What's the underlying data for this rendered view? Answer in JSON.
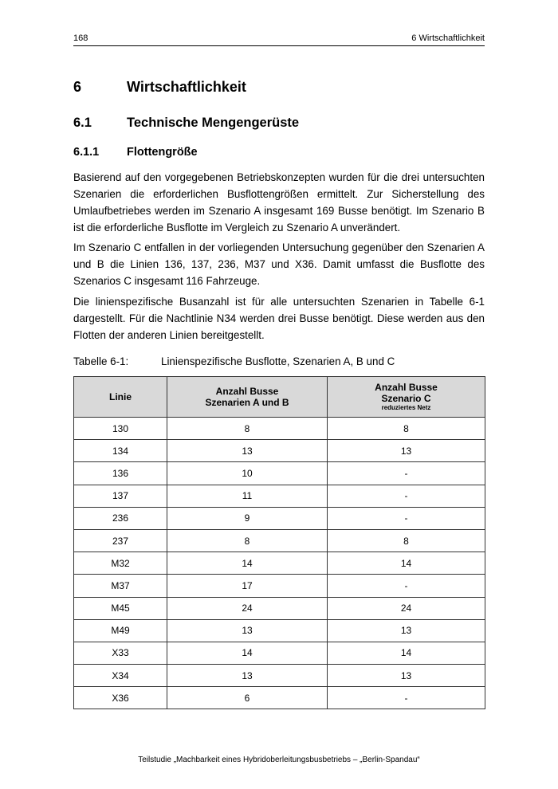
{
  "header": {
    "page_number": "168",
    "chapter": "6 Wirtschaftlichkeit"
  },
  "headings": [
    {
      "number": "6",
      "title": "Wirtschaftlichkeit"
    },
    {
      "number": "6.1",
      "title": "Technische Mengengerüste"
    },
    {
      "number": "6.1.1",
      "title": "Flottengröße"
    }
  ],
  "paragraphs": [
    "Basierend auf den vorgegebenen Betriebskonzepten wurden für die drei untersuchten Sze­narien die erforderlichen Busflottengrößen ermittelt. Zur Sicherstellung des Umlaufbetrie­bes werden im Szenario A insgesamt 169 Busse benötigt. Im Szenario B ist die erforderli­che Busflotte im Vergleich zu Szenario A unverändert.",
    "Im Szenario C entfallen in der vorliegenden Untersuchung gegenüber den Szenarien A und B die Linien 136, 137, 236, M37 und X36. Damit umfasst die Busflotte des Szenarios C insgesamt 116 Fahrzeuge.",
    "Die linienspezifische Busanzahl ist für alle untersuchten Szenarien in Tabelle 6-1 darge­stellt. Für die Nachtlinie N34 werden drei Busse benötigt. Diese werden aus den Flotten der anderen Linien bereitgestellt."
  ],
  "table": {
    "caption_number": "Tabelle 6-1:",
    "caption_title": "Linienspezifische Busflotte, Szenarien A, B und C",
    "headers": {
      "col1": "Linie",
      "col2_line1": "Anzahl Busse",
      "col2_line2": "Szenarien A und B",
      "col3_line1": "Anzahl Busse",
      "col3_line2": "Szenario C",
      "col3_note": "reduziertes Netz"
    },
    "rows": [
      [
        "130",
        "8",
        "8"
      ],
      [
        "134",
        "13",
        "13"
      ],
      [
        "136",
        "10",
        "-"
      ],
      [
        "137",
        "11",
        "-"
      ],
      [
        "236",
        "9",
        "-"
      ],
      [
        "237",
        "8",
        "8"
      ],
      [
        "M32",
        "14",
        "14"
      ],
      [
        "M37",
        "17",
        "-"
      ],
      [
        "M45",
        "24",
        "24"
      ],
      [
        "M49",
        "13",
        "13"
      ],
      [
        "X33",
        "14",
        "14"
      ],
      [
        "X34",
        "13",
        "13"
      ],
      [
        "X36",
        "6",
        "-"
      ]
    ]
  },
  "footer": "Teilstudie „Machbarkeit eines Hybridoberleitungsbusbetriebs – „Berlin-Spandau“"
}
